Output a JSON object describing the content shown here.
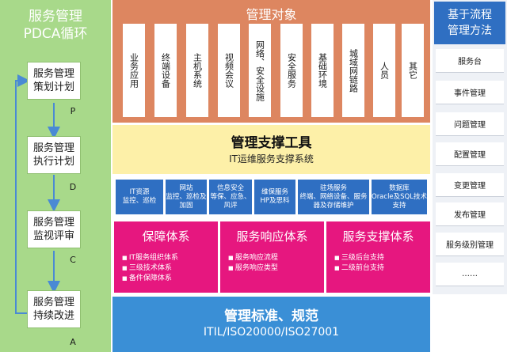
{
  "pdca": {
    "title_line1": "服务管理",
    "title_line2": "PDCA循环",
    "steps": [
      {
        "line1": "服务管理",
        "line2": "策划计划",
        "letter": "P"
      },
      {
        "line1": "服务管理",
        "line2": "执行计划",
        "letter": "D"
      },
      {
        "line1": "服务管理",
        "line2": "监视评审",
        "letter": "C"
      },
      {
        "line1": "服务管理",
        "line2": "持续改进",
        "letter": "A"
      }
    ]
  },
  "objects": {
    "title": "管理对象",
    "items": [
      "业务应用",
      "终端设备",
      "主机系统",
      "视频会议",
      "网络、安全设施",
      "安全服务",
      "基础环境",
      "城域网链路",
      "人员",
      "其它"
    ]
  },
  "tools": {
    "title": "管理支撑工具",
    "subtitle": "IT运维服务支撑系统"
  },
  "functions": [
    {
      "line1": "IT资源",
      "line2": "监控、巡检"
    },
    {
      "line1": "网站",
      "line2": "监控、巡检及加固"
    },
    {
      "line1": "信息安全",
      "line2": "等保、应急、风评"
    },
    {
      "line1": "维保服务",
      "line2": "HP及思科"
    },
    {
      "line1": "驻场服务",
      "line2": "终端、网络设备、服务器及存储维护"
    },
    {
      "line1": "数据库",
      "line2": "Oracle及SQL技术支持"
    }
  ],
  "systems": [
    {
      "title": "保障体系",
      "bullets": [
        "IT服务组织体系",
        "三级技术体系",
        "备件保障体系"
      ]
    },
    {
      "title": "服务响应体系",
      "bullets": [
        "服务响应流程",
        "服务响应类型"
      ]
    },
    {
      "title": "服务支撑体系",
      "bullets": [
        "三级后台支持",
        "二级前台支持"
      ]
    }
  ],
  "standards": {
    "title": "管理标准、规范",
    "subtitle": "ITIL/ISO20000/ISO27001"
  },
  "process": {
    "header_line1": "基于流程",
    "header_line2": "管理方法",
    "items": [
      "服务台",
      "事件管理",
      "问题管理",
      "配置管理",
      "变更管理",
      "发布管理",
      "服务级别管理",
      "……"
    ]
  },
  "colors": {
    "pdca_green": "#a8d98a",
    "objects_orange": "#dd8660",
    "tools_yellow": "#fdf0a8",
    "function_blue": "#2f6fc2",
    "system_pink": "#e6177f",
    "standards_blue": "#3a8fd6",
    "arrow_blue": "#4a8ad4"
  }
}
